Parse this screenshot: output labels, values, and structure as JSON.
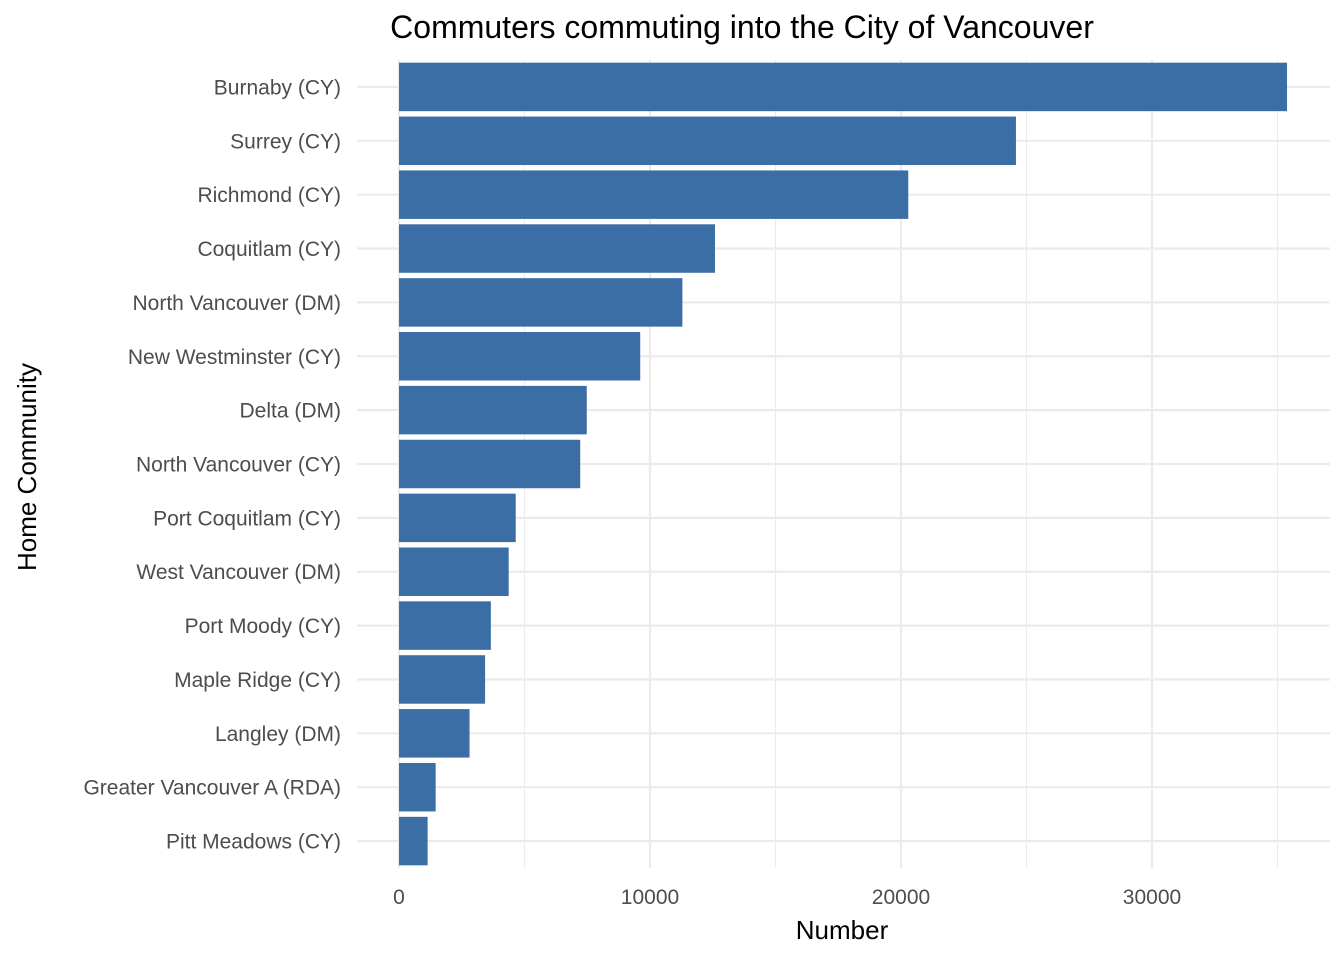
{
  "chart_data": {
    "type": "bar",
    "orientation": "horizontal",
    "title": "Commuters commuting into the City of Vancouver",
    "xlabel": "Number",
    "ylabel": "Home Community",
    "categories": [
      "Burnaby (CY)",
      "Surrey (CY)",
      "Richmond (CY)",
      "Coquitlam (CY)",
      "North Vancouver (DM)",
      "New Westminster (CY)",
      "Delta (DM)",
      "North Vancouver (CY)",
      "Port Coquitlam (CY)",
      "West Vancouver (DM)",
      "Port Moody (CY)",
      "Maple Ridge (CY)",
      "Langley (DM)",
      "Greater Vancouver A (RDA)",
      "Pitt Meadows (CY)"
    ],
    "values": [
      35380,
      24580,
      20290,
      12590,
      11290,
      9610,
      7480,
      7220,
      4650,
      4370,
      3660,
      3430,
      2810,
      1460,
      1140
    ],
    "xlim": [
      0,
      37150
    ],
    "xticks": [
      0,
      10000,
      20000,
      30000
    ],
    "xtick_labels": [
      "0",
      "10000",
      "20000",
      "30000"
    ],
    "bar_color": "#3a6ea5",
    "grid": true,
    "legend": "none"
  }
}
